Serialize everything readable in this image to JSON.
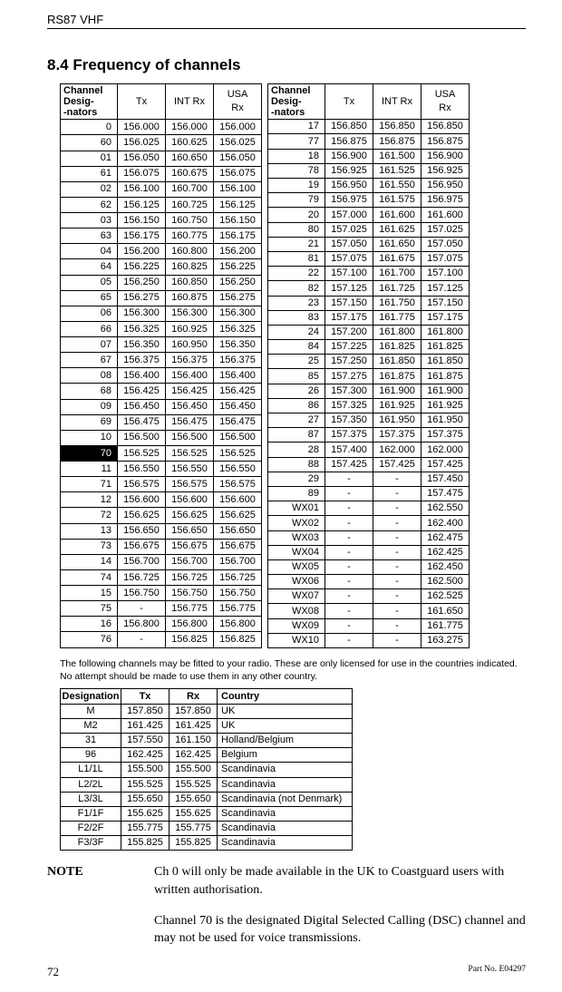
{
  "header": "RS87 VHF",
  "section_title": "8.4  Frequency of channels",
  "col_headers": {
    "des": "Channel\nDesig-\n-nators",
    "tx": "Tx",
    "intrx": "INT Rx",
    "usarx": "USA\nRx"
  },
  "left": [
    [
      "0",
      "156.000",
      "156.000",
      "156.000"
    ],
    [
      "60",
      "156.025",
      "160.625",
      "156.025"
    ],
    [
      "01",
      "156.050",
      "160.650",
      "156.050"
    ],
    [
      "61",
      "156.075",
      "160.675",
      "156.075"
    ],
    [
      "02",
      "156.100",
      "160.700",
      "156.100"
    ],
    [
      "62",
      "156.125",
      "160.725",
      "156.125"
    ],
    [
      "03",
      "156.150",
      "160.750",
      "156.150"
    ],
    [
      "63",
      "156.175",
      "160.775",
      "156.175"
    ],
    [
      "04",
      "156.200",
      "160.800",
      "156.200"
    ],
    [
      "64",
      "156.225",
      "160.825",
      "156.225"
    ],
    [
      "05",
      "156.250",
      "160.850",
      "156.250"
    ],
    [
      "65",
      "156.275",
      "160.875",
      "156.275"
    ],
    [
      "06",
      "156.300",
      "156.300",
      "156.300"
    ],
    [
      "66",
      "156.325",
      "160.925",
      "156.325"
    ],
    [
      "07",
      "156.350",
      "160.950",
      "156.350"
    ],
    [
      "67",
      "156.375",
      "156.375",
      "156.375"
    ],
    [
      "08",
      "156.400",
      "156.400",
      "156.400"
    ],
    [
      "68",
      "156.425",
      "156.425",
      "156.425"
    ],
    [
      "09",
      "156.450",
      "156.450",
      "156.450"
    ],
    [
      "69",
      "156.475",
      "156.475",
      "156.475"
    ],
    [
      "10",
      "156.500",
      "156.500",
      "156.500"
    ],
    [
      "70",
      "156.525",
      "156.525",
      "156.525"
    ],
    [
      "11",
      "156.550",
      "156.550",
      "156.550"
    ],
    [
      "71",
      "156.575",
      "156.575",
      "156.575"
    ],
    [
      "12",
      "156.600",
      "156.600",
      "156.600"
    ],
    [
      "72",
      "156.625",
      "156.625",
      "156.625"
    ],
    [
      "13",
      "156.650",
      "156.650",
      "156.650"
    ],
    [
      "73",
      "156.675",
      "156.675",
      "156.675"
    ],
    [
      "14",
      "156.700",
      "156.700",
      "156.700"
    ],
    [
      "74",
      "156.725",
      "156.725",
      "156.725"
    ],
    [
      "15",
      "156.750",
      "156.750",
      "156.750"
    ],
    [
      "75",
      "-",
      "156.775",
      "156.775"
    ],
    [
      "16",
      "156.800",
      "156.800",
      "156.800"
    ],
    [
      "76",
      "-",
      "156.825",
      "156.825"
    ]
  ],
  "right": [
    [
      "17",
      "156.850",
      "156.850",
      "156.850"
    ],
    [
      "77",
      "156.875",
      "156.875",
      "156.875"
    ],
    [
      "18",
      "156.900",
      "161.500",
      "156.900"
    ],
    [
      "78",
      "156.925",
      "161.525",
      "156.925"
    ],
    [
      "19",
      "156.950",
      "161.550",
      "156.950"
    ],
    [
      "79",
      "156.975",
      "161.575",
      "156.975"
    ],
    [
      "20",
      "157.000",
      "161.600",
      "161.600"
    ],
    [
      "80",
      "157.025",
      "161.625",
      "157.025"
    ],
    [
      "21",
      "157.050",
      "161.650",
      "157.050"
    ],
    [
      "81",
      "157.075",
      "161.675",
      "157.075"
    ],
    [
      "22",
      "157.100",
      "161.700",
      "157.100"
    ],
    [
      "82",
      "157.125",
      "161.725",
      "157.125"
    ],
    [
      "23",
      "157.150",
      "161.750",
      "157.150"
    ],
    [
      "83",
      "157.175",
      "161.775",
      "157.175"
    ],
    [
      "24",
      "157.200",
      "161.800",
      "161.800"
    ],
    [
      "84",
      "157.225",
      "161.825",
      "161.825"
    ],
    [
      "25",
      "157.250",
      "161.850",
      "161.850"
    ],
    [
      "85",
      "157.275",
      "161.875",
      "161.875"
    ],
    [
      "26",
      "157.300",
      "161.900",
      "161.900"
    ],
    [
      "86",
      "157.325",
      "161.925",
      "161.925"
    ],
    [
      "27",
      "157.350",
      "161.950",
      "161.950"
    ],
    [
      "87",
      "157.375",
      "157.375",
      "157.375"
    ],
    [
      "28",
      "157.400",
      "162.000",
      "162.000"
    ],
    [
      "88",
      "157.425",
      "157.425",
      "157.425"
    ],
    [
      "29",
      "-",
      "-",
      "157.450"
    ],
    [
      "89",
      "-",
      "-",
      "157.475"
    ],
    [
      "WX01",
      "-",
      "-",
      "162.550"
    ],
    [
      "WX02",
      "-",
      "-",
      "162.400"
    ],
    [
      "WX03",
      "-",
      "-",
      "162.475"
    ],
    [
      "WX04",
      "-",
      "-",
      "162.425"
    ],
    [
      "WX05",
      "-",
      "-",
      "162.450"
    ],
    [
      "WX06",
      "-",
      "-",
      "162.500"
    ],
    [
      "WX07",
      "-",
      "-",
      "162.525"
    ],
    [
      "WX08",
      "-",
      "-",
      "161.650"
    ],
    [
      "WX09",
      "-",
      "-",
      "161.775"
    ],
    [
      "WX10",
      "-",
      "-",
      "163.275"
    ]
  ],
  "note_intro": "The following channels may be fitted to your radio.  These are only licensed for use in the countries indicated.  No attempt should be made to use them in any other country.",
  "t2_headers": [
    "Designation",
    "Tx",
    "Rx",
    "Country"
  ],
  "t2": [
    [
      "M",
      "157.850",
      "157.850",
      "UK"
    ],
    [
      "M2",
      "161.425",
      "161.425",
      "UK"
    ],
    [
      "31",
      "157.550",
      "161.150",
      "Holland/Belgium"
    ],
    [
      "96",
      "162.425",
      "162.425",
      "Belgium"
    ],
    [
      "L1/1L",
      "155.500",
      "155.500",
      "Scandinavia"
    ],
    [
      "L2/2L",
      "155.525",
      "155.525",
      "Scandinavia"
    ],
    [
      "L3/3L",
      "155.650",
      "155.650",
      "Scandinavia (not Denmark)"
    ],
    [
      "F1/1F",
      "155.625",
      "155.625",
      "Scandinavia"
    ],
    [
      "F2/2F",
      "155.775",
      "155.775",
      "Scandinavia"
    ],
    [
      "F3/3F",
      "155.825",
      "155.825",
      "Scandinavia"
    ]
  ],
  "note_label": "NOTE",
  "note_p1": "Ch 0 will only be made available in the UK to Coastguard users with written authorisation.",
  "note_p2": "Channel 70 is the designated Digital Selected Calling (DSC) channel and may not be used for voice transmissions.",
  "page_number": "72",
  "part": "Part No. E04297",
  "type": "document-page"
}
